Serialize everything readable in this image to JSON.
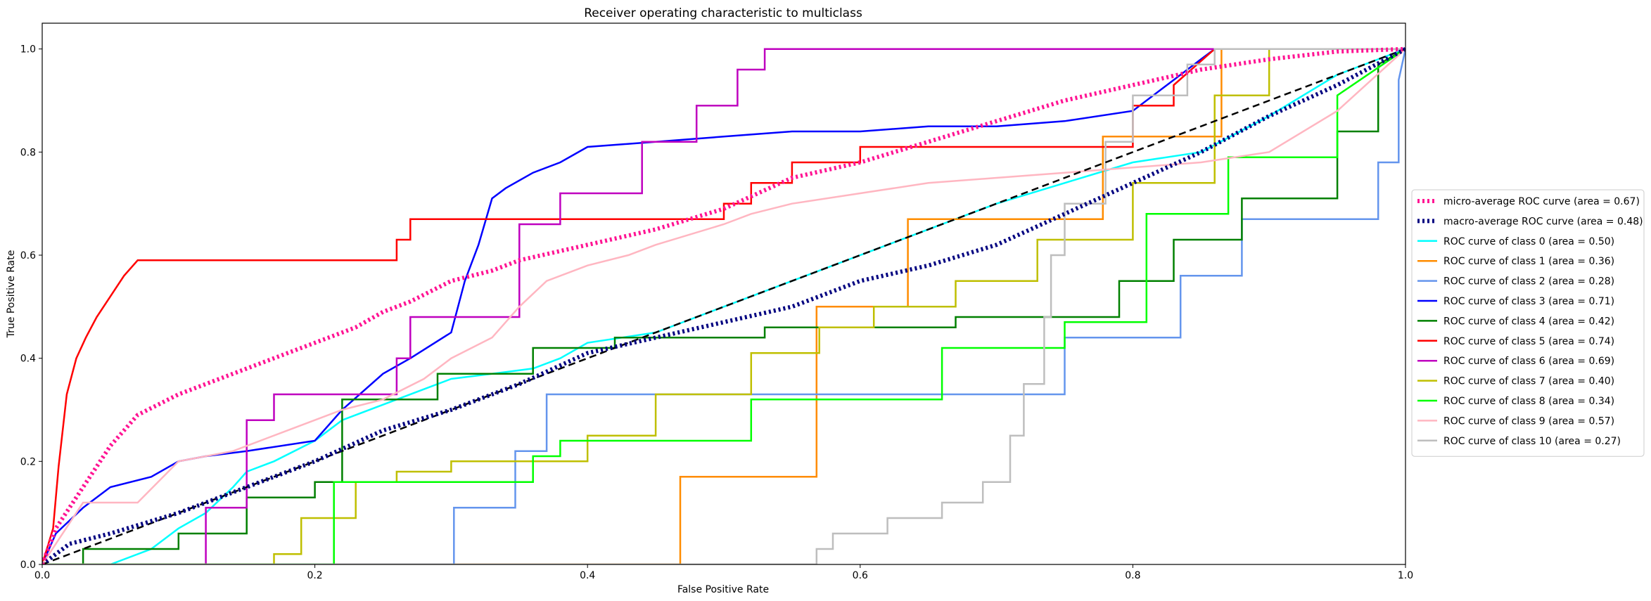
{
  "chart_data": {
    "type": "line",
    "title": "Receiver operating characteristic to multiclass",
    "xlabel": "False Positive Rate",
    "ylabel": "True Positive Rate",
    "xlim": [
      0.0,
      1.0
    ],
    "ylim": [
      0.0,
      1.05
    ],
    "xticks": [
      0.0,
      0.2,
      0.4,
      0.6,
      0.8,
      1.0
    ],
    "yticks": [
      0.0,
      0.2,
      0.4,
      0.6,
      0.8,
      1.0
    ],
    "tick_format": "1",
    "grid": false,
    "legend_position": "right",
    "series": [
      {
        "name": "micro-average ROC curve (area = 0.67)",
        "color": "#ff1493",
        "style": "dotted",
        "width": 6,
        "x": [
          0,
          0.01,
          0.03,
          0.05,
          0.07,
          0.1,
          0.13,
          0.15,
          0.18,
          0.2,
          0.23,
          0.25,
          0.27,
          0.3,
          0.33,
          0.35,
          0.4,
          0.45,
          0.5,
          0.55,
          0.6,
          0.65,
          0.7,
          0.75,
          0.8,
          0.85,
          0.9,
          0.95,
          1.0
        ],
        "y": [
          0,
          0.07,
          0.15,
          0.23,
          0.29,
          0.33,
          0.36,
          0.38,
          0.41,
          0.43,
          0.46,
          0.49,
          0.51,
          0.55,
          0.57,
          0.59,
          0.62,
          0.65,
          0.69,
          0.75,
          0.78,
          0.82,
          0.86,
          0.9,
          0.93,
          0.96,
          0.98,
          0.995,
          1.0
        ]
      },
      {
        "name": "macro-average ROC curve (area = 0.48)",
        "color": "#000080",
        "style": "dotted",
        "width": 6,
        "x": [
          0,
          0.02,
          0.05,
          0.1,
          0.15,
          0.2,
          0.25,
          0.3,
          0.35,
          0.4,
          0.45,
          0.5,
          0.55,
          0.6,
          0.65,
          0.7,
          0.75,
          0.8,
          0.85,
          0.9,
          0.95,
          1.0
        ],
        "y": [
          0,
          0.04,
          0.06,
          0.1,
          0.15,
          0.2,
          0.26,
          0.3,
          0.35,
          0.41,
          0.44,
          0.47,
          0.5,
          0.55,
          0.58,
          0.62,
          0.68,
          0.74,
          0.8,
          0.87,
          0.93,
          1.0
        ]
      },
      {
        "name": "ROC curve of class 0 (area = 0.50)",
        "color": "#00ffff",
        "style": "solid",
        "width": 2.5,
        "x": [
          0,
          0.05,
          0.08,
          0.1,
          0.12,
          0.14,
          0.15,
          0.17,
          0.2,
          0.22,
          0.25,
          0.28,
          0.3,
          0.33,
          0.36,
          0.38,
          0.4,
          0.45,
          0.5,
          0.55,
          0.6,
          0.65,
          0.7,
          0.75,
          0.8,
          0.85,
          0.9,
          0.95,
          1.0
        ],
        "y": [
          0,
          0.0,
          0.03,
          0.07,
          0.1,
          0.15,
          0.18,
          0.2,
          0.24,
          0.28,
          0.31,
          0.34,
          0.36,
          0.37,
          0.38,
          0.4,
          0.43,
          0.45,
          0.5,
          0.55,
          0.6,
          0.65,
          0.7,
          0.74,
          0.78,
          0.8,
          0.87,
          0.95,
          1.0
        ]
      },
      {
        "name": "ROC curve of class 1 (area = 0.36)",
        "color": "#ff8c00",
        "style": "solid",
        "width": 2.5,
        "x": [
          0,
          0.468,
          0.468,
          0.568,
          0.568,
          0.568,
          0.568,
          0.608,
          0.608,
          0.608,
          0.608,
          0.635,
          0.635,
          0.778,
          0.778,
          0.778,
          0.778,
          0.815,
          0.815,
          0.865,
          0.865,
          1.0
        ],
        "y": [
          0,
          0.0,
          0.17,
          0.17,
          0.33,
          0.5,
          0.5,
          0.5,
          0.5,
          0.5,
          0.5,
          0.5,
          0.67,
          0.67,
          0.83,
          0.83,
          0.83,
          0.83,
          0.83,
          0.83,
          1.0,
          1.0
        ]
      },
      {
        "name": "ROC curve of class 2 (area = 0.28)",
        "color": "#6495ed",
        "style": "solid",
        "width": 2.5,
        "x": [
          0,
          0.302,
          0.302,
          0.347,
          0.347,
          0.37,
          0.37,
          0.75,
          0.75,
          0.835,
          0.835,
          0.88,
          0.88,
          0.98,
          0.98,
          0.995,
          0.995,
          1.0
        ],
        "y": [
          0,
          0.0,
          0.11,
          0.11,
          0.22,
          0.22,
          0.33,
          0.33,
          0.44,
          0.44,
          0.56,
          0.56,
          0.67,
          0.67,
          0.78,
          0.78,
          0.94,
          1.0
        ]
      },
      {
        "name": "ROC curve of class 3 (area = 0.71)",
        "color": "#0000ff",
        "style": "solid",
        "width": 2.5,
        "x": [
          0,
          0.01,
          0.03,
          0.05,
          0.08,
          0.1,
          0.12,
          0.15,
          0.2,
          0.22,
          0.25,
          0.27,
          0.3,
          0.31,
          0.32,
          0.33,
          0.34,
          0.36,
          0.38,
          0.4,
          0.45,
          0.5,
          0.55,
          0.6,
          0.65,
          0.7,
          0.75,
          0.8,
          0.83,
          0.85,
          0.86,
          1.0
        ],
        "y": [
          0,
          0.06,
          0.11,
          0.15,
          0.17,
          0.2,
          0.21,
          0.22,
          0.24,
          0.3,
          0.37,
          0.4,
          0.45,
          0.55,
          0.62,
          0.71,
          0.73,
          0.76,
          0.78,
          0.81,
          0.82,
          0.83,
          0.84,
          0.84,
          0.85,
          0.85,
          0.86,
          0.88,
          0.94,
          0.98,
          1.0,
          1.0
        ]
      },
      {
        "name": "ROC curve of class 4 (area = 0.42)",
        "color": "#008000",
        "style": "solid",
        "width": 2.5,
        "x": [
          0,
          0.03,
          0.03,
          0.1,
          0.1,
          0.15,
          0.15,
          0.2,
          0.2,
          0.22,
          0.22,
          0.29,
          0.29,
          0.36,
          0.36,
          0.42,
          0.42,
          0.53,
          0.53,
          0.67,
          0.67,
          0.79,
          0.79,
          0.83,
          0.83,
          0.88,
          0.88,
          0.95,
          0.95,
          0.98,
          0.98,
          1.0
        ],
        "y": [
          0,
          0.0,
          0.03,
          0.03,
          0.06,
          0.06,
          0.13,
          0.13,
          0.16,
          0.16,
          0.32,
          0.32,
          0.37,
          0.37,
          0.42,
          0.42,
          0.44,
          0.44,
          0.46,
          0.46,
          0.48,
          0.48,
          0.55,
          0.55,
          0.63,
          0.63,
          0.71,
          0.71,
          0.84,
          0.84,
          0.97,
          1.0
        ]
      },
      {
        "name": "ROC curve of class 5 (area = 0.74)",
        "color": "#ff0000",
        "style": "solid",
        "width": 2.5,
        "x": [
          0,
          0.008,
          0.012,
          0.018,
          0.025,
          0.032,
          0.04,
          0.05,
          0.06,
          0.07,
          0.26,
          0.26,
          0.27,
          0.27,
          0.29,
          0.29,
          0.5,
          0.5,
          0.52,
          0.52,
          0.55,
          0.55,
          0.6,
          0.6,
          0.7,
          0.7,
          0.8,
          0.8,
          0.83,
          0.83,
          0.86,
          1.0
        ],
        "y": [
          0,
          0.07,
          0.19,
          0.33,
          0.4,
          0.44,
          0.48,
          0.52,
          0.56,
          0.59,
          0.59,
          0.63,
          0.63,
          0.67,
          0.67,
          0.67,
          0.67,
          0.7,
          0.7,
          0.74,
          0.74,
          0.78,
          0.78,
          0.81,
          0.81,
          0.81,
          0.81,
          0.89,
          0.89,
          0.93,
          1.0,
          1.0
        ]
      },
      {
        "name": "ROC curve of class 6 (area = 0.69)",
        "color": "#bf00bf",
        "style": "solid",
        "width": 2.5,
        "x": [
          0,
          0.12,
          0.12,
          0.15,
          0.15,
          0.17,
          0.17,
          0.26,
          0.26,
          0.27,
          0.27,
          0.35,
          0.35,
          0.38,
          0.38,
          0.44,
          0.44,
          0.48,
          0.48,
          0.51,
          0.51,
          0.53,
          0.53,
          1.0
        ],
        "y": [
          0,
          0.0,
          0.11,
          0.11,
          0.28,
          0.28,
          0.33,
          0.33,
          0.4,
          0.4,
          0.48,
          0.48,
          0.66,
          0.66,
          0.72,
          0.72,
          0.82,
          0.82,
          0.89,
          0.89,
          0.96,
          0.96,
          1.0,
          1.0
        ]
      },
      {
        "name": "ROC curve of class 7 (area = 0.40)",
        "color": "#bfbf00",
        "style": "solid",
        "width": 2.5,
        "x": [
          0,
          0.17,
          0.17,
          0.19,
          0.19,
          0.23,
          0.23,
          0.26,
          0.26,
          0.3,
          0.3,
          0.4,
          0.4,
          0.45,
          0.45,
          0.52,
          0.52,
          0.57,
          0.57,
          0.61,
          0.61,
          0.67,
          0.67,
          0.73,
          0.73,
          0.8,
          0.8,
          0.86,
          0.86,
          0.9,
          0.9,
          1.0
        ],
        "y": [
          0,
          0.0,
          0.02,
          0.02,
          0.09,
          0.09,
          0.16,
          0.16,
          0.18,
          0.18,
          0.2,
          0.2,
          0.25,
          0.25,
          0.33,
          0.33,
          0.41,
          0.41,
          0.46,
          0.46,
          0.5,
          0.5,
          0.55,
          0.55,
          0.63,
          0.63,
          0.74,
          0.74,
          0.91,
          0.91,
          1.0,
          1.0
        ]
      },
      {
        "name": "ROC curve of class 8 (area = 0.34)",
        "color": "#00ff00",
        "style": "solid",
        "width": 2.5,
        "x": [
          0,
          0.214,
          0.214,
          0.36,
          0.36,
          0.38,
          0.38,
          0.52,
          0.52,
          0.66,
          0.66,
          0.75,
          0.75,
          0.81,
          0.81,
          0.87,
          0.87,
          0.95,
          0.95,
          1.0
        ],
        "y": [
          0,
          0.0,
          0.16,
          0.16,
          0.21,
          0.21,
          0.24,
          0.24,
          0.32,
          0.32,
          0.42,
          0.42,
          0.47,
          0.47,
          0.68,
          0.68,
          0.79,
          0.79,
          0.91,
          1.0
        ]
      },
      {
        "name": "ROC curve of class 9 (area = 0.57)",
        "color": "#ffb6c1",
        "style": "solid",
        "width": 2.5,
        "x": [
          0,
          0.03,
          0.07,
          0.1,
          0.14,
          0.18,
          0.22,
          0.25,
          0.28,
          0.3,
          0.33,
          0.35,
          0.37,
          0.4,
          0.43,
          0.45,
          0.5,
          0.52,
          0.55,
          0.6,
          0.65,
          0.7,
          0.75,
          0.8,
          0.85,
          0.9,
          0.95,
          1.0
        ],
        "y": [
          0,
          0.12,
          0.12,
          0.2,
          0.22,
          0.26,
          0.3,
          0.32,
          0.36,
          0.4,
          0.44,
          0.5,
          0.55,
          0.58,
          0.6,
          0.62,
          0.66,
          0.68,
          0.7,
          0.72,
          0.74,
          0.75,
          0.76,
          0.77,
          0.78,
          0.8,
          0.88,
          1.0
        ]
      },
      {
        "name": "ROC curve of class 10 (area = 0.27)",
        "color": "#bebebe",
        "style": "solid",
        "width": 2.5,
        "x": [
          0,
          0.568,
          0.568,
          0.58,
          0.58,
          0.62,
          0.62,
          0.66,
          0.66,
          0.69,
          0.69,
          0.71,
          0.71,
          0.72,
          0.72,
          0.735,
          0.735,
          0.74,
          0.74,
          0.75,
          0.75,
          0.78,
          0.78,
          0.8,
          0.8,
          0.84,
          0.84,
          0.86,
          0.86,
          1.0
        ],
        "y": [
          0,
          0.0,
          0.03,
          0.03,
          0.06,
          0.06,
          0.09,
          0.09,
          0.12,
          0.12,
          0.16,
          0.16,
          0.25,
          0.25,
          0.35,
          0.35,
          0.48,
          0.48,
          0.6,
          0.6,
          0.7,
          0.7,
          0.82,
          0.82,
          0.91,
          0.91,
          0.97,
          0.97,
          1.0,
          1.0
        ]
      },
      {
        "name": "",
        "color": "#000000",
        "style": "dashed",
        "width": 2.5,
        "x": [
          0,
          1
        ],
        "y": [
          0,
          1
        ]
      }
    ]
  }
}
